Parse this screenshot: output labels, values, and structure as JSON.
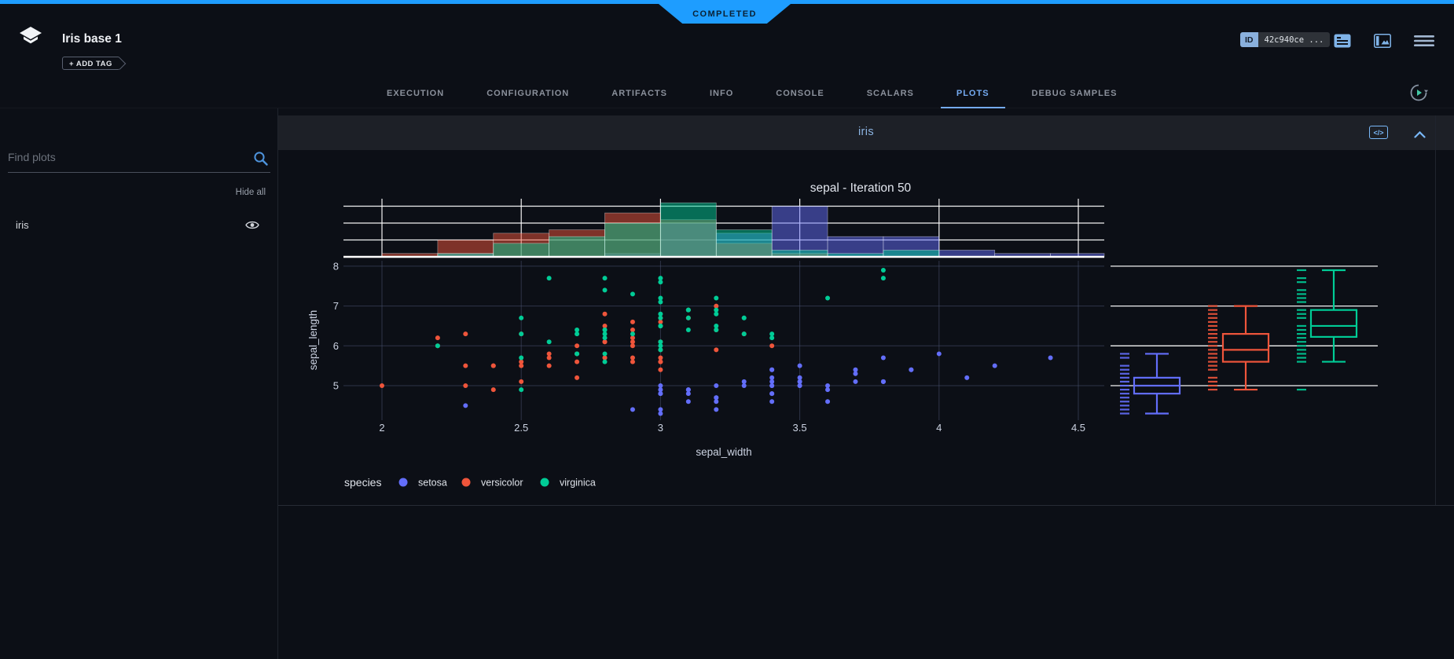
{
  "colors": {
    "accent_blue": "#1e9dff",
    "tab_active": "#74aaf0",
    "panel_title": "#8cb4e2",
    "setosa": "#636efa",
    "versicolor": "#EF553B",
    "virginica": "#00cc96"
  },
  "status_banner": {
    "label": "COMPLETED"
  },
  "header": {
    "title": "Iris base 1",
    "add_tag": "+ ADD TAG",
    "id_badge": {
      "label": "ID",
      "value": "42c940ce ..."
    }
  },
  "icons": {
    "logo": "stacked-layers",
    "note": "note-lines",
    "details_panel": "split-panel-image",
    "menu": "hamburger",
    "auto_refresh": "circular-arrow-play",
    "search": "magnifier",
    "visibility": "eye",
    "code": "</>",
    "collapse": "chevron-up",
    "add_tag_arrow": "chevron-right"
  },
  "tabs": {
    "items": [
      "EXECUTION",
      "CONFIGURATION",
      "ARTIFACTS",
      "INFO",
      "CONSOLE",
      "SCALARS",
      "PLOTS",
      "DEBUG SAMPLES"
    ],
    "active": "PLOTS"
  },
  "sidebar": {
    "search_placeholder": "Find plots",
    "hide_all": "Hide all",
    "plots": [
      "iris"
    ]
  },
  "panel": {
    "title": "iris"
  },
  "chart_data": {
    "type": "scatter",
    "title": "sepal - Iteration 50",
    "xlabel": "sepal_width",
    "ylabel": "sepal_length",
    "legend_title": "species",
    "x_range": [
      1.86,
      4.6
    ],
    "y_range": [
      4.1,
      8.18
    ],
    "x_ticks": [
      2,
      2.5,
      3,
      3.5,
      4,
      4.5
    ],
    "y_ticks": [
      5,
      6,
      7,
      8
    ],
    "grid": true,
    "legend_position": "bottom-left",
    "marginals": {
      "top": "histogram",
      "right": "box-with-rug",
      "hist_bin_width": 0.2,
      "hist_grid_step": 5
    },
    "series": [
      {
        "name": "setosa",
        "color": "#636efa",
        "points": [
          [
            3.5,
            5.1
          ],
          [
            3.0,
            4.9
          ],
          [
            3.2,
            4.7
          ],
          [
            3.1,
            4.6
          ],
          [
            3.6,
            5.0
          ],
          [
            3.9,
            5.4
          ],
          [
            3.4,
            4.6
          ],
          [
            3.4,
            5.0
          ],
          [
            2.9,
            4.4
          ],
          [
            3.1,
            4.9
          ],
          [
            3.7,
            5.4
          ],
          [
            3.4,
            4.8
          ],
          [
            3.0,
            4.8
          ],
          [
            3.0,
            4.3
          ],
          [
            4.0,
            5.8
          ],
          [
            4.4,
            5.7
          ],
          [
            3.9,
            5.4
          ],
          [
            3.5,
            5.1
          ],
          [
            3.8,
            5.7
          ],
          [
            3.8,
            5.1
          ],
          [
            3.4,
            5.4
          ],
          [
            3.7,
            5.1
          ],
          [
            3.6,
            4.6
          ],
          [
            3.3,
            5.1
          ],
          [
            3.4,
            4.8
          ],
          [
            3.0,
            5.0
          ],
          [
            3.4,
            5.0
          ],
          [
            3.5,
            5.2
          ],
          [
            3.4,
            5.2
          ],
          [
            3.2,
            4.7
          ],
          [
            3.1,
            4.8
          ],
          [
            3.4,
            5.4
          ],
          [
            4.1,
            5.2
          ],
          [
            4.2,
            5.5
          ],
          [
            3.1,
            4.9
          ],
          [
            3.2,
            5.0
          ],
          [
            3.5,
            5.5
          ],
          [
            3.6,
            4.9
          ],
          [
            3.0,
            4.4
          ],
          [
            3.4,
            5.1
          ],
          [
            3.5,
            5.0
          ],
          [
            2.3,
            4.5
          ],
          [
            3.2,
            4.4
          ],
          [
            3.5,
            5.0
          ],
          [
            3.8,
            5.1
          ],
          [
            3.0,
            4.8
          ],
          [
            3.8,
            5.1
          ],
          [
            3.2,
            4.6
          ],
          [
            3.7,
            5.3
          ],
          [
            3.3,
            5.0
          ]
        ]
      },
      {
        "name": "versicolor",
        "color": "#EF553B",
        "points": [
          [
            3.2,
            7.0
          ],
          [
            3.2,
            6.4
          ],
          [
            3.1,
            6.9
          ],
          [
            2.3,
            5.5
          ],
          [
            2.8,
            6.5
          ],
          [
            2.8,
            5.7
          ],
          [
            3.3,
            6.3
          ],
          [
            2.4,
            4.9
          ],
          [
            2.9,
            6.6
          ],
          [
            2.7,
            5.2
          ],
          [
            2.0,
            5.0
          ],
          [
            3.0,
            5.9
          ],
          [
            2.2,
            6.0
          ],
          [
            2.9,
            6.1
          ],
          [
            2.9,
            5.6
          ],
          [
            3.1,
            6.7
          ],
          [
            3.0,
            5.6
          ],
          [
            2.7,
            5.8
          ],
          [
            2.2,
            6.2
          ],
          [
            2.5,
            5.6
          ],
          [
            3.2,
            5.9
          ],
          [
            2.8,
            6.1
          ],
          [
            2.5,
            6.3
          ],
          [
            2.8,
            6.1
          ],
          [
            2.9,
            6.4
          ],
          [
            3.0,
            6.6
          ],
          [
            2.8,
            6.8
          ],
          [
            3.0,
            6.7
          ],
          [
            2.9,
            6.0
          ],
          [
            2.6,
            5.7
          ],
          [
            2.4,
            5.5
          ],
          [
            2.4,
            5.5
          ],
          [
            2.7,
            5.8
          ],
          [
            2.7,
            6.0
          ],
          [
            3.0,
            5.4
          ],
          [
            3.4,
            6.0
          ],
          [
            3.1,
            6.7
          ],
          [
            2.3,
            6.3
          ],
          [
            3.0,
            5.6
          ],
          [
            2.5,
            5.5
          ],
          [
            2.6,
            5.5
          ],
          [
            3.0,
            6.1
          ],
          [
            2.6,
            5.8
          ],
          [
            2.3,
            5.0
          ],
          [
            2.7,
            5.6
          ],
          [
            3.0,
            5.7
          ],
          [
            2.9,
            5.7
          ],
          [
            2.9,
            6.2
          ],
          [
            2.5,
            5.1
          ],
          [
            2.8,
            5.7
          ]
        ]
      },
      {
        "name": "virginica",
        "color": "#00cc96",
        "points": [
          [
            3.3,
            6.3
          ],
          [
            2.7,
            5.8
          ],
          [
            3.0,
            7.1
          ],
          [
            2.9,
            6.3
          ],
          [
            3.0,
            6.5
          ],
          [
            3.0,
            7.6
          ],
          [
            2.5,
            4.9
          ],
          [
            2.9,
            7.3
          ],
          [
            2.5,
            6.7
          ],
          [
            3.6,
            7.2
          ],
          [
            3.2,
            6.5
          ],
          [
            2.7,
            6.4
          ],
          [
            3.0,
            6.8
          ],
          [
            2.5,
            5.7
          ],
          [
            2.8,
            5.8
          ],
          [
            3.2,
            6.4
          ],
          [
            3.0,
            6.5
          ],
          [
            3.8,
            7.7
          ],
          [
            2.6,
            7.7
          ],
          [
            2.2,
            6.0
          ],
          [
            3.2,
            6.9
          ],
          [
            2.8,
            5.6
          ],
          [
            2.8,
            7.7
          ],
          [
            2.7,
            6.3
          ],
          [
            3.3,
            6.7
          ],
          [
            3.2,
            7.2
          ],
          [
            2.8,
            6.2
          ],
          [
            3.0,
            6.1
          ],
          [
            2.8,
            6.4
          ],
          [
            3.0,
            7.2
          ],
          [
            2.8,
            7.4
          ],
          [
            3.8,
            7.9
          ],
          [
            2.8,
            6.4
          ],
          [
            2.8,
            6.3
          ],
          [
            2.6,
            6.1
          ],
          [
            3.0,
            7.7
          ],
          [
            3.4,
            6.3
          ],
          [
            3.1,
            6.4
          ],
          [
            3.0,
            6.0
          ],
          [
            3.1,
            6.9
          ],
          [
            3.1,
            6.7
          ],
          [
            3.1,
            6.9
          ],
          [
            2.7,
            5.8
          ],
          [
            3.2,
            6.8
          ],
          [
            3.3,
            6.7
          ],
          [
            3.0,
            6.7
          ],
          [
            2.5,
            6.3
          ],
          [
            3.0,
            6.5
          ],
          [
            3.4,
            6.2
          ],
          [
            3.0,
            5.9
          ]
        ]
      }
    ]
  }
}
